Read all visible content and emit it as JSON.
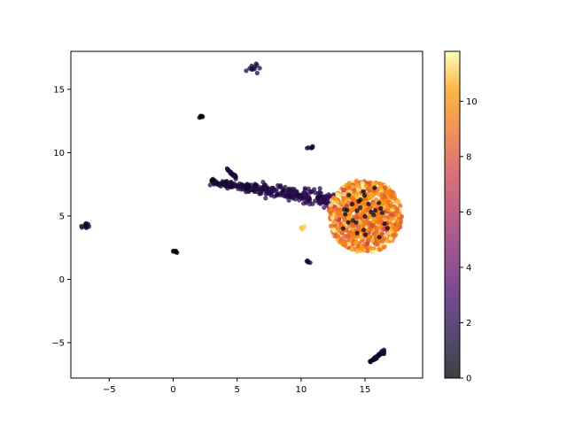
{
  "chart_data": {
    "type": "scatter",
    "title": "",
    "xlabel": "",
    "ylabel": "",
    "xlim": [
      -8.0,
      19.5
    ],
    "ylim": [
      -7.8,
      18.0
    ],
    "x_ticks": [
      -5,
      0,
      5,
      10,
      15
    ],
    "y_ticks": [
      -5,
      0,
      5,
      10,
      15
    ],
    "grid": false,
    "colormap": "inferno",
    "colorbar": {
      "range": [
        0,
        11.8
      ],
      "ticks": [
        0,
        2,
        4,
        6,
        8,
        10
      ]
    },
    "marker_alpha": 0.75,
    "clusters": [
      {
        "name": "island-left",
        "cx": -6.9,
        "cy": 4.2,
        "rx": 0.15,
        "ry": 0.12,
        "n": 12,
        "value": 1.0
      },
      {
        "name": "island-center-low",
        "cx": 0.2,
        "cy": 2.2,
        "rx": 0.1,
        "ry": 0.08,
        "n": 8,
        "value": 0.4
      },
      {
        "name": "island-top-small",
        "cx": 2.2,
        "cy": 12.85,
        "rx": 0.08,
        "ry": 0.08,
        "n": 6,
        "value": 0.2
      },
      {
        "name": "island-top",
        "cx": 6.3,
        "cy": 16.7,
        "rx": 0.2,
        "ry": 0.15,
        "n": 12,
        "value": 1.5
      },
      {
        "name": "island-mid",
        "cx": 10.8,
        "cy": 10.45,
        "rx": 0.1,
        "ry": 0.08,
        "n": 6,
        "value": 1.2
      },
      {
        "name": "island-small-low",
        "cx": 10.5,
        "cy": 1.4,
        "rx": 0.1,
        "ry": 0.06,
        "n": 5,
        "value": 1.0
      },
      {
        "name": "island-yellow",
        "cx": 10.1,
        "cy": 4.1,
        "rx": 0.12,
        "ry": 0.1,
        "n": 4,
        "value": 11.0
      },
      {
        "name": "main-blob",
        "cx": 15.0,
        "cy": 5.0,
        "rx": 2.9,
        "ry": 2.9,
        "n": 900,
        "value": 9.5,
        "spread": 1.3
      }
    ],
    "streaks": [
      {
        "name": "arm",
        "x0": 3.0,
        "y0": 7.7,
        "x1": 12.5,
        "y1": 6.2,
        "n": 320,
        "width": 0.35,
        "v0": 1.2,
        "v1": 2.2
      },
      {
        "name": "short-arm",
        "x0": 4.2,
        "y0": 8.7,
        "x1": 4.9,
        "y1": 8.0,
        "n": 25,
        "width": 0.1,
        "v0": 1.5,
        "v1": 1.5
      },
      {
        "name": "bottom-arm",
        "x0": 15.3,
        "y0": -6.6,
        "x1": 16.5,
        "y1": -5.7,
        "n": 40,
        "width": 0.1,
        "v0": 1.0,
        "v1": 1.0
      }
    ],
    "dark_specks_in_blob": 30
  }
}
